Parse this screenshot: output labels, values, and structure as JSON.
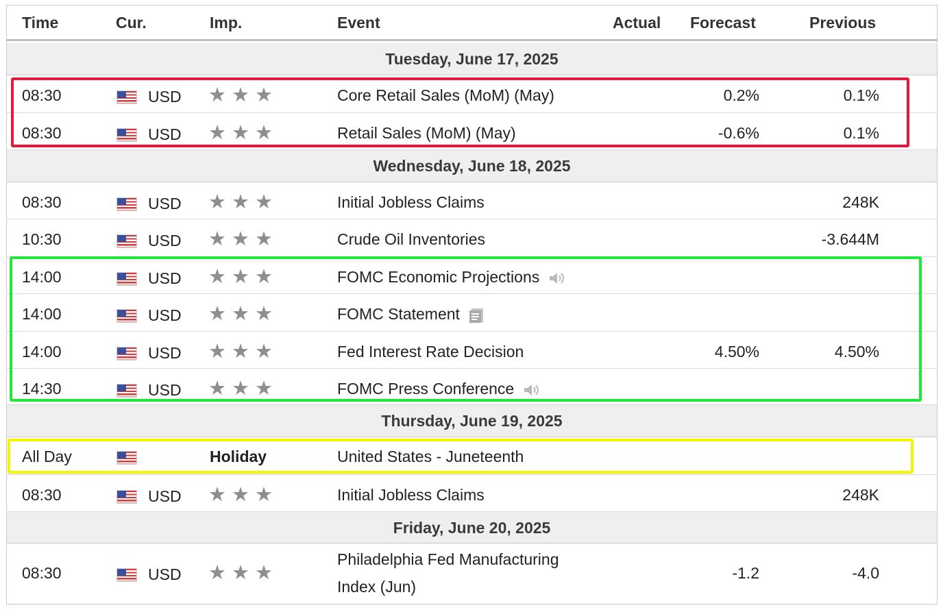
{
  "headers": {
    "time": "Time",
    "currency": "Cur.",
    "importance": "Imp.",
    "event": "Event",
    "actual": "Actual",
    "forecast": "Forecast",
    "previous": "Previous"
  },
  "days": [
    {
      "date": "Tuesday, June 17, 2025",
      "rows": [
        {
          "time": "08:30",
          "currency": "USD",
          "event": "Core Retail Sales (MoM) (May)",
          "forecast": "0.2%",
          "previous": "0.1%"
        },
        {
          "time": "08:30",
          "currency": "USD",
          "event": "Retail Sales (MoM) (May)",
          "forecast": "-0.6%",
          "previous": "0.1%"
        }
      ]
    },
    {
      "date": "Wednesday, June 18, 2025",
      "rows": [
        {
          "time": "08:30",
          "currency": "USD",
          "event": "Initial Jobless Claims",
          "previous": "248K"
        },
        {
          "time": "10:30",
          "currency": "USD",
          "event": "Crude Oil Inventories",
          "previous": "-3.644M"
        },
        {
          "time": "14:00",
          "currency": "USD",
          "event": "FOMC Economic Projections",
          "icon": "speaker-icon"
        },
        {
          "time": "14:00",
          "currency": "USD",
          "event": "FOMC Statement",
          "icon": "document-icon"
        },
        {
          "time": "14:00",
          "currency": "USD",
          "event": "Fed Interest Rate Decision",
          "forecast": "4.50%",
          "previous": "4.50%"
        },
        {
          "time": "14:30",
          "currency": "USD",
          "event": "FOMC Press Conference",
          "icon": "speaker-icon"
        }
      ]
    },
    {
      "date": "Thursday, June 19, 2025",
      "rows": [
        {
          "time": "All Day",
          "importance_label": "Holiday",
          "event": "United States - Juneteenth"
        },
        {
          "time": "08:30",
          "currency": "USD",
          "event": "Initial Jobless Claims",
          "previous": "248K"
        }
      ]
    },
    {
      "date": "Friday, June 20, 2025",
      "rows": [
        {
          "time": "08:30",
          "currency": "USD",
          "event_line1": "Philadelphia Fed Manufacturing",
          "event_line2": "Index (Jun)",
          "forecast": "-1.2",
          "previous": "-4.0"
        }
      ]
    }
  ],
  "stars_glyph": "★★★",
  "icons": {
    "flag": "us-flag-icon",
    "star": "star-icon",
    "speaker": "speaker-icon",
    "document": "document-icon"
  },
  "highlight_colors": {
    "red": "#f0143c",
    "green": "#1ee83c",
    "yellow": "#f5f500"
  },
  "colors": {
    "day_band": "#efefef",
    "star": "#8e8e8e"
  }
}
